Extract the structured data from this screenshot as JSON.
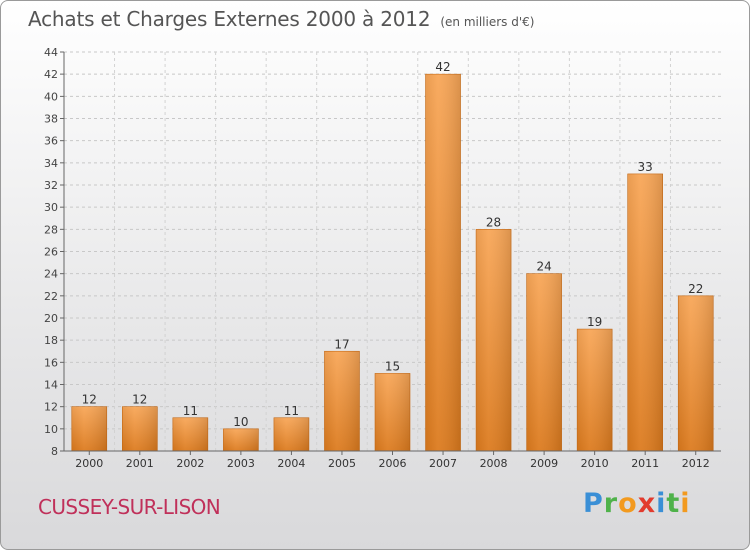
{
  "title": "Achats et Charges Externes 2000 à 2012",
  "unit_note": "(en milliers d'€)",
  "commune": "CUSSEY-SUR-LISON",
  "brand": {
    "letters": [
      {
        "ch": "P",
        "color": "#3a8fd6"
      },
      {
        "ch": "r",
        "color": "#4fb24a"
      },
      {
        "ch": "o",
        "color": "#f29a1f"
      },
      {
        "ch": "x",
        "color": "#e23b2e"
      },
      {
        "ch": "i",
        "color": "#3a8fd6"
      },
      {
        "ch": "t",
        "color": "#4fb24a"
      },
      {
        "ch": "i",
        "color": "#f29a1f"
      }
    ]
  },
  "chart_data": {
    "type": "bar",
    "title": "Achats et Charges Externes 2000 à 2012",
    "categories": [
      "2000",
      "2001",
      "2002",
      "2003",
      "2004",
      "2005",
      "2006",
      "2007",
      "2008",
      "2009",
      "2010",
      "2011",
      "2012"
    ],
    "values": [
      12,
      12,
      11,
      10,
      11,
      17,
      15,
      42,
      28,
      24,
      19,
      33,
      22
    ],
    "ylim": [
      8,
      44
    ],
    "yticks": [
      8,
      10,
      12,
      14,
      16,
      18,
      20,
      22,
      24,
      26,
      28,
      30,
      32,
      34,
      36,
      38,
      40,
      42,
      44
    ],
    "grid": true,
    "bar_color": "#f0922e"
  }
}
